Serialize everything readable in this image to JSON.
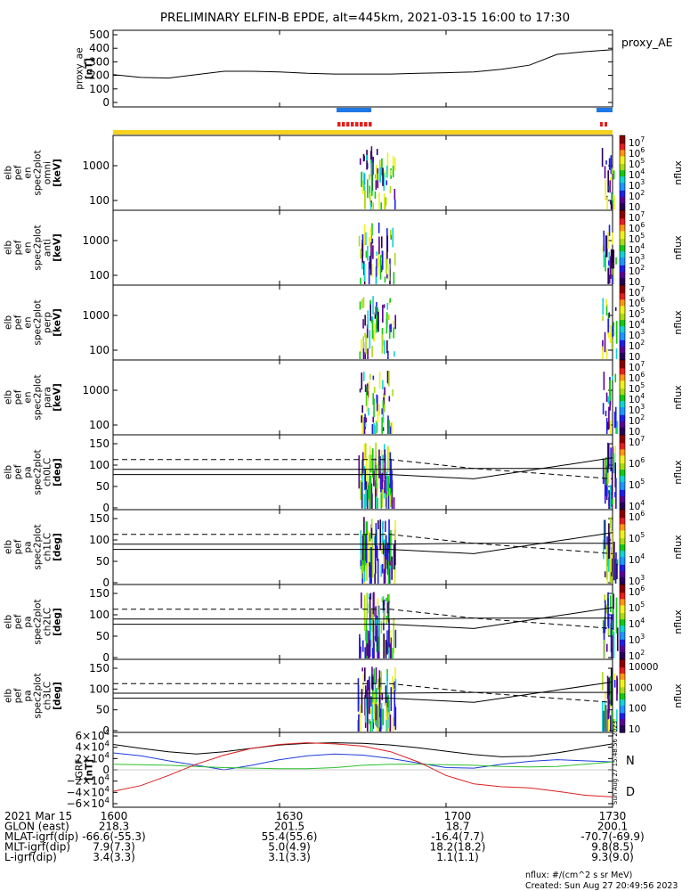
{
  "title": "PRELIMINARY ELFIN-B EPDE, alt=445km, 2021-03-15 16:00 to 17:30",
  "colors": {
    "blue_bar": "#1e78e6",
    "red_bar": "#e61e1e",
    "yellow_bar": "#f5d21e",
    "line_black": "#000000",
    "grf_blue": "#1e3cdc",
    "grf_green": "#2dbe2d",
    "grf_red": "#dc1e1e"
  },
  "panels": [
    {
      "id": "proxy_ae",
      "type": "line",
      "ylabel": [
        "proxy_ae",
        "[nT]"
      ],
      "yticks": [
        "500",
        "400",
        "300",
        "200",
        "100",
        "0"
      ],
      "legend": "proxy_AE"
    },
    {
      "id": "pef_en_omni",
      "type": "spectrogram",
      "ylabel": [
        "elb",
        "pef",
        "en",
        "spec2plot",
        "omni",
        "[keV]"
      ],
      "yticks": [
        "1000",
        "100"
      ],
      "cbar_ticks": [
        "10^7",
        "10^6",
        "10^5",
        "10^4",
        "10^3",
        "10^2",
        "10"
      ],
      "cbar_label": "nflux"
    },
    {
      "id": "pef_en_anti",
      "type": "spectrogram",
      "ylabel": [
        "elb",
        "pef",
        "en",
        "spec2plot",
        "anti",
        "[keV]"
      ],
      "yticks": [
        "1000",
        "100"
      ],
      "cbar_ticks": [
        "10^7",
        "10^6",
        "10^5",
        "10^4",
        "10^3",
        "10^2",
        "10"
      ],
      "cbar_label": "nflux"
    },
    {
      "id": "pef_en_perp",
      "type": "spectrogram",
      "ylabel": [
        "elb",
        "pef",
        "en",
        "spec2plot",
        "perp",
        "[keV]"
      ],
      "yticks": [
        "1000",
        "100"
      ],
      "cbar_ticks": [
        "10^7",
        "10^6",
        "10^5",
        "10^4",
        "10^3",
        "10^2",
        "10"
      ],
      "cbar_label": "nflux"
    },
    {
      "id": "pef_en_para",
      "type": "spectrogram",
      "ylabel": [
        "elb",
        "pef",
        "en",
        "spec2plot",
        "para",
        "[keV]"
      ],
      "yticks": [
        "1000",
        "100"
      ],
      "cbar_ticks": [
        "10^7",
        "10^6",
        "10^5",
        "10^4",
        "10^3",
        "10^2",
        "10"
      ],
      "cbar_label": "nflux"
    },
    {
      "id": "pef_pa_ch0LC",
      "type": "spectrogram",
      "ylabel": [
        "elb",
        "pef",
        "pa",
        "spec2plot",
        "ch0LC",
        "[deg]"
      ],
      "yticks": [
        "150",
        "100",
        "50",
        "0"
      ],
      "cbar_ticks": [
        "10^7",
        "10^6",
        "10^5",
        "10^4"
      ],
      "cbar_label": "nflux"
    },
    {
      "id": "pef_pa_ch1LC",
      "type": "spectrogram",
      "ylabel": [
        "elb",
        "pef",
        "pa",
        "spec2plot",
        "ch1LC",
        "[deg]"
      ],
      "yticks": [
        "150",
        "100",
        "50",
        "0"
      ],
      "cbar_ticks": [
        "10^6",
        "10^5",
        "10^4",
        "10^3"
      ],
      "cbar_label": "nflux"
    },
    {
      "id": "pef_pa_ch2LC",
      "type": "spectrogram",
      "ylabel": [
        "elb",
        "pef",
        "pa",
        "spec2plot",
        "ch2LC",
        "[deg]"
      ],
      "yticks": [
        "150",
        "100",
        "50",
        "0"
      ],
      "cbar_ticks": [
        "10^6",
        "10^5",
        "10^4",
        "10^3",
        "10^2"
      ],
      "cbar_label": "nflux"
    },
    {
      "id": "pef_pa_ch3LC",
      "type": "spectrogram",
      "ylabel": [
        "elb",
        "pef",
        "pa",
        "spec2plot",
        "ch3LC",
        "[deg]"
      ],
      "yticks": [
        "150",
        "100",
        "50",
        "0"
      ],
      "cbar_ticks": [
        "10000",
        "1000",
        "100",
        "10"
      ],
      "cbar_label": "nflux"
    },
    {
      "id": "igrf",
      "type": "line",
      "ylabel": [
        "IGRF",
        "[nT]"
      ],
      "yticks": [
        "6×10^4",
        "4×10^4",
        "2×10^4",
        "0",
        "−2×10^4",
        "−4×10^4",
        "−6×10^4"
      ],
      "legend_letters": [
        "N",
        "D"
      ],
      "side_stamp": "Sun Aug 27 15:48:56 2023"
    }
  ],
  "chart_data": [
    {
      "type": "line",
      "panel": "proxy_ae",
      "ylabel": "proxy_ae [nT]",
      "ylim": [
        0,
        500
      ],
      "x": [
        "16:00",
        "16:05",
        "16:10",
        "16:15",
        "16:20",
        "16:25",
        "16:30",
        "16:35",
        "16:40",
        "16:45",
        "16:50",
        "16:55",
        "17:00",
        "17:05",
        "17:10",
        "17:15",
        "17:20",
        "17:25",
        "17:30"
      ],
      "series": [
        {
          "name": "proxy_AE",
          "values": [
            205,
            185,
            180,
            205,
            230,
            230,
            225,
            215,
            210,
            210,
            210,
            215,
            220,
            225,
            245,
            275,
            355,
            375,
            390
          ]
        }
      ]
    },
    {
      "type": "line",
      "panel": "pa_overlays",
      "ylim": [
        0,
        180
      ],
      "x": [
        "16:00",
        "16:45",
        "16:50",
        "17:05",
        "17:30"
      ],
      "series": [
        {
          "values": [
            78,
            78,
            78,
            68,
            117
          ]
        },
        {
          "values": [
            90,
            90,
            90,
            92,
            92
          ]
        },
        {
          "values": [
            113,
            113,
            113,
            92,
            68
          ]
        }
      ]
    },
    {
      "type": "line",
      "panel": "igrf",
      "ylabel": "IGRF [nT]",
      "ylim": [
        -60000,
        60000
      ],
      "x": [
        "16:00",
        "16:05",
        "16:10",
        "16:15",
        "16:20",
        "16:25",
        "16:30",
        "16:35",
        "16:40",
        "16:45",
        "16:50",
        "16:55",
        "17:00",
        "17:05",
        "17:10",
        "17:15",
        "17:20",
        "17:25",
        "17:30"
      ],
      "series": [
        {
          "values": [
            45000,
            38000,
            32000,
            28000,
            32000,
            38000,
            44000,
            47000,
            48000,
            47000,
            44000,
            39000,
            33000,
            27000,
            23000,
            24000,
            30000,
            38000,
            46000
          ]
        },
        {
          "values": [
            30000,
            25000,
            16000,
            8000,
            0,
            8000,
            18000,
            25000,
            28000,
            26000,
            20000,
            12000,
            4000,
            3000,
            10000,
            15000,
            18000,
            16000,
            14000
          ]
        },
        {
          "values": [
            10000,
            9000,
            8000,
            6000,
            4000,
            3000,
            2000,
            2000,
            4000,
            8000,
            10000,
            10000,
            9000,
            8000,
            6000,
            5000,
            6000,
            10000,
            14000
          ]
        },
        {
          "values": [
            -38000,
            -28000,
            -10000,
            10000,
            26000,
            38000,
            45000,
            48000,
            46000,
            42000,
            32000,
            14000,
            -10000,
            -25000,
            -30000,
            -32000,
            -38000,
            -45000,
            -48000
          ]
        }
      ]
    }
  ],
  "spectro_data": {
    "bursts": [
      "16:45",
      "16:46",
      "16:47",
      "16:48",
      "16:49",
      "16:50",
      "17:29",
      "17:30"
    ]
  },
  "xaxis": {
    "tick_labels": [
      "1600",
      "1630",
      "1700",
      "1730"
    ],
    "rows": [
      {
        "label": "2021 Mar 15",
        "values": [
          "1600",
          "1630",
          "1700",
          "1730"
        ]
      },
      {
        "label": "GLON (east)",
        "values": [
          "218.3",
          "201.5",
          "18.7",
          "200.1"
        ]
      },
      {
        "label": "MLAT-igrf(dip)",
        "values": [
          "-66.6(-55.3)",
          "55.4(55.6)",
          "-16.4(7.7)",
          "-70.7(-69.9)"
        ]
      },
      {
        "label": "MLT-igrf(dip)",
        "values": [
          "7.9(7.3)",
          "5.0(4.9)",
          "18.2(18.2)",
          "9.8(8.5)"
        ]
      },
      {
        "label": "L-igrf(dip)",
        "values": [
          "3.4(3.3)",
          "3.1(3.3)",
          "1.1(1.1)",
          "9.3(9.0)"
        ]
      }
    ]
  },
  "footer": {
    "units": "nflux: #/(cm^2 s sr MeV)",
    "created": "Created: Sun Aug 27 20:49:56 2023"
  }
}
